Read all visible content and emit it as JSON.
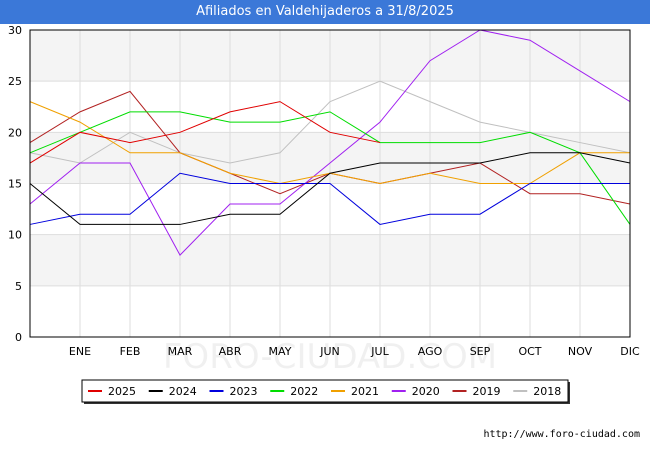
{
  "title": "Afiliados en Valdehijaderos a 31/8/2025",
  "footer": "http://www.foro-ciudad.com",
  "watermark": "FORO-CIUDAD.COM",
  "chart_data": {
    "type": "line",
    "title": "Afiliados en Valdehijaderos a 31/8/2025",
    "x": [
      "",
      "ENE",
      "FEB",
      "MAR",
      "ABR",
      "MAY",
      "JUN",
      "JUL",
      "AGO",
      "SEP",
      "OCT",
      "NOV",
      "DIC"
    ],
    "xlabel": "",
    "ylabel": "",
    "ylim": [
      0,
      30
    ],
    "yticks": [
      0,
      5,
      10,
      15,
      20,
      25,
      30
    ],
    "grid": true,
    "legend": "bottom",
    "series": [
      {
        "name": "2025",
        "color": "#e00000",
        "values": [
          17,
          20,
          19,
          20,
          22,
          23,
          20,
          19,
          null,
          null,
          null,
          null,
          null
        ]
      },
      {
        "name": "2024",
        "color": "#000000",
        "values": [
          15,
          11,
          11,
          11,
          12,
          12,
          16,
          17,
          17,
          17,
          18,
          18,
          17
        ]
      },
      {
        "name": "2023",
        "color": "#0000dd",
        "values": [
          11,
          12,
          12,
          16,
          15,
          15,
          15,
          11,
          12,
          12,
          15,
          15,
          15
        ]
      },
      {
        "name": "2022",
        "color": "#00dd00",
        "values": [
          18,
          20,
          22,
          22,
          21,
          21,
          22,
          19,
          19,
          19,
          20,
          18,
          11
        ]
      },
      {
        "name": "2021",
        "color": "#f0a000",
        "values": [
          23,
          21,
          18,
          18,
          16,
          15,
          16,
          15,
          16,
          15,
          15,
          18,
          18
        ]
      },
      {
        "name": "2020",
        "color": "#a020f0",
        "values": [
          13,
          17,
          17,
          8,
          13,
          13,
          17,
          21,
          27,
          30,
          29,
          26,
          23
        ]
      },
      {
        "name": "2019",
        "color": "#b22222",
        "values": [
          19,
          22,
          24,
          18,
          16,
          14,
          16,
          15,
          16,
          17,
          14,
          14,
          13
        ]
      },
      {
        "name": "2018",
        "color": "#c0c0c0",
        "values": [
          18,
          17,
          20,
          18,
          17,
          18,
          23,
          25,
          23,
          21,
          20,
          19,
          18
        ]
      }
    ]
  }
}
